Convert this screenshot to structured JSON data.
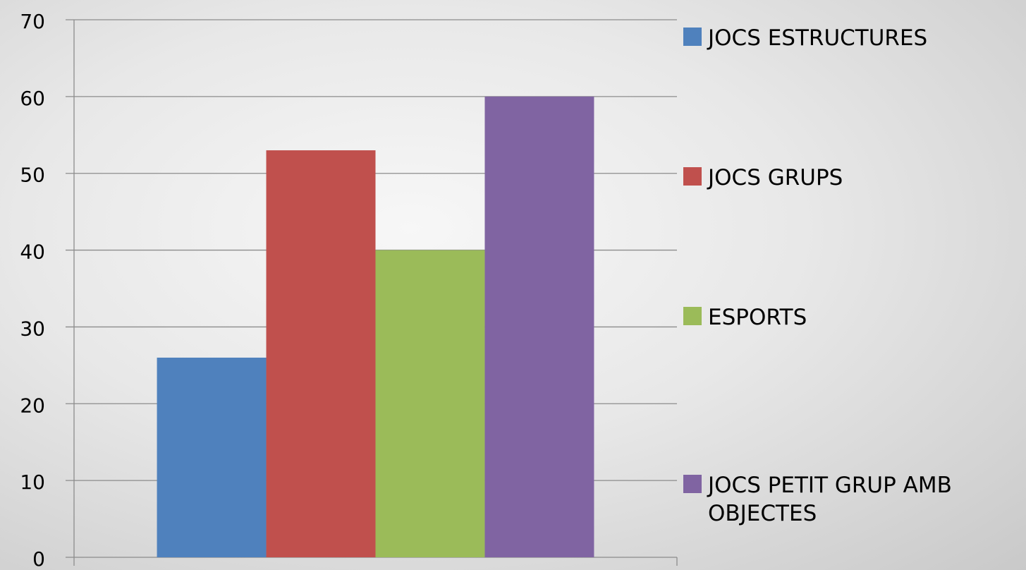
{
  "chart_data": {
    "type": "bar",
    "categories": [
      ""
    ],
    "series": [
      {
        "name": "JOCS ESTRUCTURES",
        "values": [
          26
        ],
        "color": "#4F81BD"
      },
      {
        "name": "JOCS GRUPS",
        "values": [
          53
        ],
        "color": "#C0504D"
      },
      {
        "name": "ESPORTS",
        "values": [
          40
        ],
        "color": "#9BBB59"
      },
      {
        "name": "JOCS PETIT GRUP AMB OBJECTES",
        "values": [
          60
        ],
        "color": "#8064A2"
      }
    ],
    "y_ticks": [
      "0",
      "10",
      "20",
      "30",
      "40",
      "50",
      "60",
      "70"
    ],
    "ylim": [
      0,
      70
    ],
    "grid": true,
    "legend_position": "right",
    "legend_lines": [
      [
        "JOCS ESTRUCTURES"
      ],
      [
        "JOCS GRUPS"
      ],
      [
        "ESPORTS"
      ],
      [
        "JOCS PETIT GRUP AMB",
        "OBJECTES"
      ]
    ]
  }
}
